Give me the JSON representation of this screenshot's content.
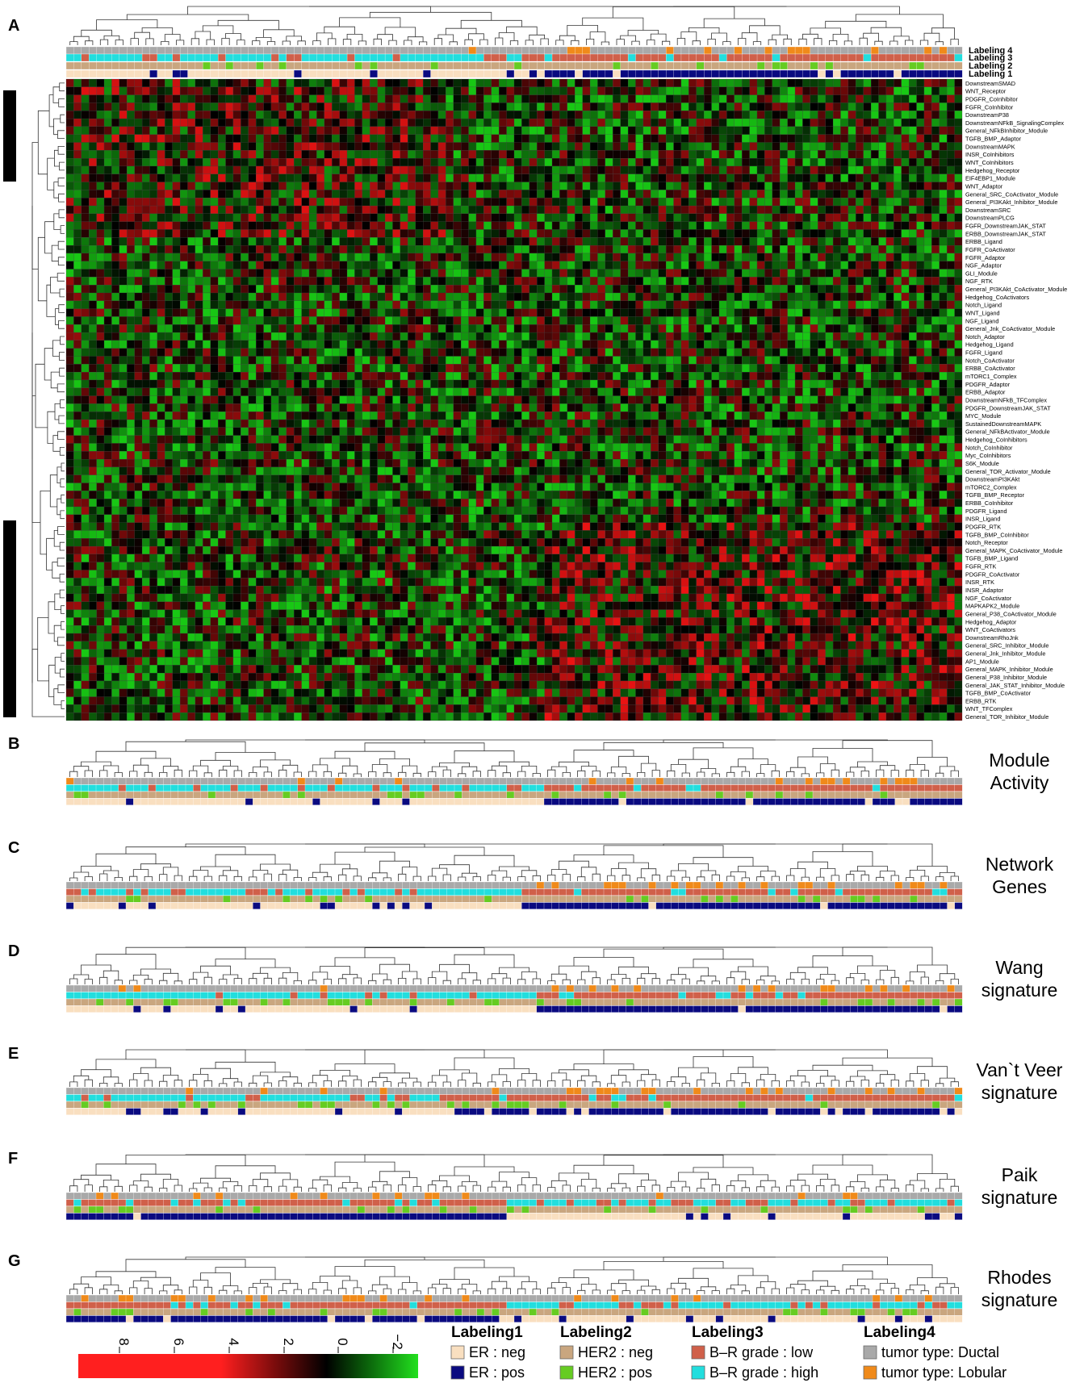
{
  "panel_a": {
    "letter": "A",
    "track_labels": [
      "Labeling 4",
      "Labeling 3",
      "Labeling 2",
      "Labeling 1"
    ],
    "row_labels": [
      "DownstreamSMAD",
      "WNT_Receptor",
      "PDGFR_CoInhibitor",
      "FGFR_CoInhibitor",
      "DownstreamP38",
      "DownstreamNFkB_SignalingComplex",
      "General_NFkBInhibitor_Module",
      "TGFB_BMP_Adaptor",
      "DownstreamMAPK",
      "INSR_CoInhibitors",
      "WNT_CoInhibitors",
      "Hedgehog_Receptor",
      "EIF4EBP1_Module",
      "WNT_Adaptor",
      "General_SRC_CoActivator_Module",
      "General_PI3KAkt_Inhibitor_Module",
      "DownstreamSRC",
      "DownstreamPLCG",
      "FGFR_DownstreamJAK_STAT",
      "ERBB_DownstreamJAK_STAT",
      "ERBB_Ligand",
      "FGFR_CoActivator",
      "FGFR_Adaptor",
      "NGF_Adaptor",
      "GLI_Module",
      "NGF_RTK",
      "General_PI3KAkt_CoActivator_Module",
      "Hedgehog_CoActivators",
      "Notch_Ligand",
      "WNT_Ligand",
      "NGF_Ligand",
      "General_Jnk_CoActivator_Module",
      "Notch_Adaptor",
      "Hedgehog_Ligand",
      "FGFR_Ligand",
      "Notch_CoActivator",
      "ERBB_CoActivator",
      "mTORC1_Complex",
      "PDGFR_Adaptor",
      "ERBB_Adaptor",
      "DownstreamNFkB_TFComplex",
      "PDGFR_DownstreamJAK_STAT",
      "MYC_Module",
      "SustainedDownstreamMAPK",
      "General_NFkBActivator_Module",
      "Hedgehog_CoInhibitors",
      "Notch_CoInhibitor",
      "Myc_CoInhibitors",
      "S6K_Module",
      "General_TOR_Activator_Module",
      "DownstreamPI3KAkt",
      "mTORC2_Complex",
      "TGFB_BMP_Receptor",
      "ERBB_CoInhibitor",
      "PDGFR_Ligand",
      "INSR_Ligand",
      "PDGFR_RTK",
      "TGFB_BMP_CoInhibitor",
      "Notch_Receptor",
      "General_MAPK_CoActivator_Module",
      "TGFB_BMP_Ligand",
      "FGFR_RTK",
      "PDGFR_CoActivator",
      "INSR_RTK",
      "INSR_Adaptor",
      "NGF_CoActivator",
      "MAPKAPK2_Module",
      "General_P38_CoActivator_Module",
      "Hedgehog_Adaptor",
      "WNT_CoActivators",
      "DownstreamRhoJnk",
      "General_SRC_Inhibitor_Module",
      "General_Jnk_Inhibitor_Module",
      "AP1_Module",
      "General_MAPK_Inhibitor_Module",
      "General_P38_Inhibitor_Module",
      "General_JAK_STAT_Inhibitor_Module",
      "TGFB_BMP_CoActivator",
      "ERBB_RTK",
      "WNT_TFComplex",
      "General_TOR_Inhibitor_Module"
    ]
  },
  "panels": [
    {
      "letter": "B",
      "label": [
        "Module",
        "Activity"
      ]
    },
    {
      "letter": "C",
      "label": [
        "Network",
        "Genes"
      ]
    },
    {
      "letter": "D",
      "label": [
        "Wang",
        "signature"
      ]
    },
    {
      "letter": "E",
      "label": [
        "Van`t Veer",
        "signature"
      ]
    },
    {
      "letter": "F",
      "label": [
        "Paik",
        "signature"
      ]
    },
    {
      "letter": "G",
      "label": [
        "Rhodes",
        "signature"
      ]
    }
  ],
  "colorbar": {
    "ticks": [
      "8",
      "6",
      "4",
      "2",
      "0",
      "−2"
    ],
    "colors": {
      "high": "#ff1f1f",
      "mid": "#000000",
      "low": "#22e01e"
    }
  },
  "legend": [
    {
      "title": "Labeling1",
      "items": [
        {
          "label": "ER : neg",
          "color": "#f9dfc0"
        },
        {
          "label": "ER : pos",
          "color": "#0a0a80"
        }
      ]
    },
    {
      "title": "Labeling2",
      "items": [
        {
          "label": "HER2 : neg",
          "color": "#c9a67f"
        },
        {
          "label": "HER2 : pos",
          "color": "#66cc22"
        }
      ]
    },
    {
      "title": "Labeling3",
      "items": [
        {
          "label": "B–R grade : low",
          "color": "#d0604a"
        },
        {
          "label": "B–R grade : high",
          "color": "#22dede"
        }
      ]
    },
    {
      "title": "Labeling4",
      "items": [
        {
          "label": "tumor type: Ductal",
          "color": "#a9a9a9"
        },
        {
          "label": "tumor type: Lobular",
          "color": "#f08a1a"
        }
      ]
    }
  ]
}
